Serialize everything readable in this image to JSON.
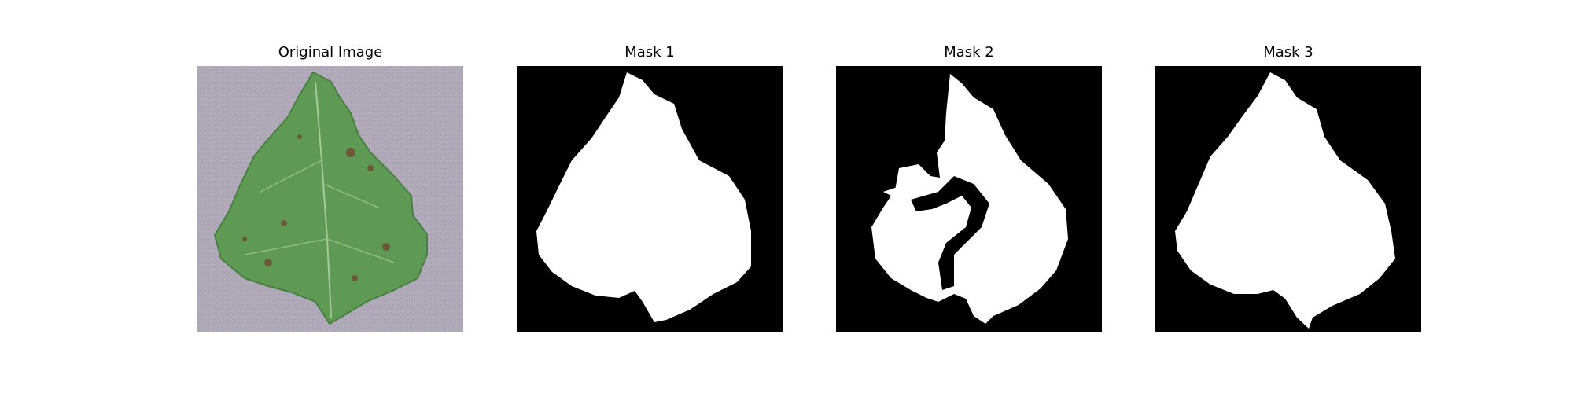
{
  "panels": [
    {
      "title": "Original Image",
      "kind": "photo"
    },
    {
      "title": "Mask 1",
      "kind": "mask"
    },
    {
      "title": "Mask 2",
      "kind": "mask"
    },
    {
      "title": "Mask 3",
      "kind": "mask"
    }
  ],
  "colors": {
    "background_photo": "#b0a9b8",
    "leaf_green": "#5f9a55",
    "leaf_dark": "#3f6f3d",
    "lesion": "#6b5a3a",
    "mask_bg": "#000000",
    "mask_fg": "#ffffff"
  }
}
